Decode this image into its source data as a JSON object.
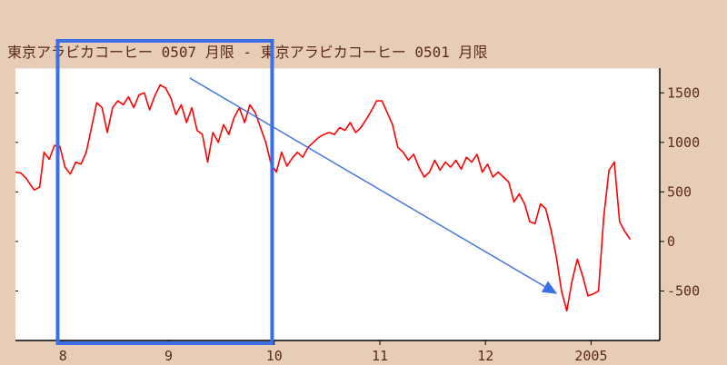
{
  "chart_data": {
    "type": "line",
    "title": "東京アラビカコーヒー 0507 月限 - 東京アラビカコーヒー 0501 月限",
    "x_tick_labels": [
      "8",
      "9",
      "10",
      "11",
      "12",
      "2005"
    ],
    "y_tick_labels": [
      "1500",
      "1000",
      "500",
      "0",
      "-500"
    ],
    "y_ticks": [
      1500,
      1000,
      500,
      0,
      -500
    ],
    "ylim": [
      -1000,
      1750
    ],
    "xlim": [
      7.55,
      13.65
    ],
    "grid": false,
    "legend": "none",
    "series": [
      {
        "color": "#ff0000",
        "x": [
          7.55,
          7.6,
          7.65,
          7.7,
          7.73,
          7.78,
          7.82,
          7.87,
          7.92,
          7.97,
          8.02,
          8.07,
          8.12,
          8.17,
          8.22,
          8.27,
          8.32,
          8.37,
          8.42,
          8.47,
          8.52,
          8.57,
          8.62,
          8.67,
          8.72,
          8.77,
          8.82,
          8.87,
          8.92,
          8.97,
          9.02,
          9.07,
          9.12,
          9.17,
          9.22,
          9.27,
          9.32,
          9.37,
          9.42,
          9.47,
          9.52,
          9.57,
          9.62,
          9.67,
          9.72,
          9.77,
          9.82,
          9.87,
          9.92,
          9.97,
          10.02,
          10.07,
          10.12,
          10.17,
          10.22,
          10.27,
          10.32,
          10.37,
          10.42,
          10.47,
          10.52,
          10.57,
          10.62,
          10.67,
          10.72,
          10.77,
          10.82,
          10.87,
          10.92,
          10.97,
          11.02,
          11.07,
          11.12,
          11.17,
          11.22,
          11.27,
          11.32,
          11.37,
          11.42,
          11.47,
          11.52,
          11.57,
          11.62,
          11.67,
          11.72,
          11.77,
          11.82,
          11.87,
          11.92,
          11.97,
          12.02,
          12.07,
          12.12,
          12.17,
          12.22,
          12.27,
          12.32,
          12.37,
          12.42,
          12.47,
          12.52,
          12.57,
          12.62,
          12.67,
          12.72,
          12.77,
          12.82,
          12.87,
          12.92,
          12.97,
          13.02,
          13.07,
          13.12,
          13.17,
          13.22,
          13.27,
          13.32,
          13.37
        ],
        "values": [
          700,
          690,
          640,
          560,
          520,
          550,
          900,
          830,
          970,
          960,
          750,
          680,
          800,
          780,
          900,
          1150,
          1400,
          1350,
          1100,
          1350,
          1420,
          1380,
          1460,
          1350,
          1480,
          1500,
          1330,
          1470,
          1580,
          1550,
          1450,
          1280,
          1380,
          1200,
          1350,
          1120,
          1080,
          800,
          1100,
          1000,
          1180,
          1080,
          1250,
          1350,
          1200,
          1380,
          1300,
          1150,
          1000,
          780,
          700,
          900,
          760,
          840,
          900,
          850,
          950,
          1000,
          1050,
          1080,
          1100,
          1080,
          1150,
          1120,
          1200,
          1100,
          1150,
          1230,
          1320,
          1420,
          1420,
          1300,
          1180,
          950,
          900,
          820,
          880,
          750,
          650,
          700,
          820,
          720,
          800,
          750,
          820,
          730,
          850,
          800,
          880,
          700,
          780,
          650,
          700,
          650,
          600,
          400,
          480,
          380,
          200,
          180,
          380,
          330,
          120,
          -150,
          -500,
          -700,
          -400,
          -180,
          -350,
          -550,
          -530,
          -500,
          250,
          720,
          800,
          200,
          100,
          20
        ]
      }
    ],
    "annotations": [
      {
        "type": "rectangle",
        "color": "#3c6ee6",
        "x_start": 7.95,
        "x_end": 9.98
      },
      {
        "type": "arrow",
        "color": "#3c6ee6",
        "from": {
          "x": 9.2,
          "y": 1650
        },
        "to": {
          "x": 12.68,
          "y": -530
        }
      }
    ]
  }
}
